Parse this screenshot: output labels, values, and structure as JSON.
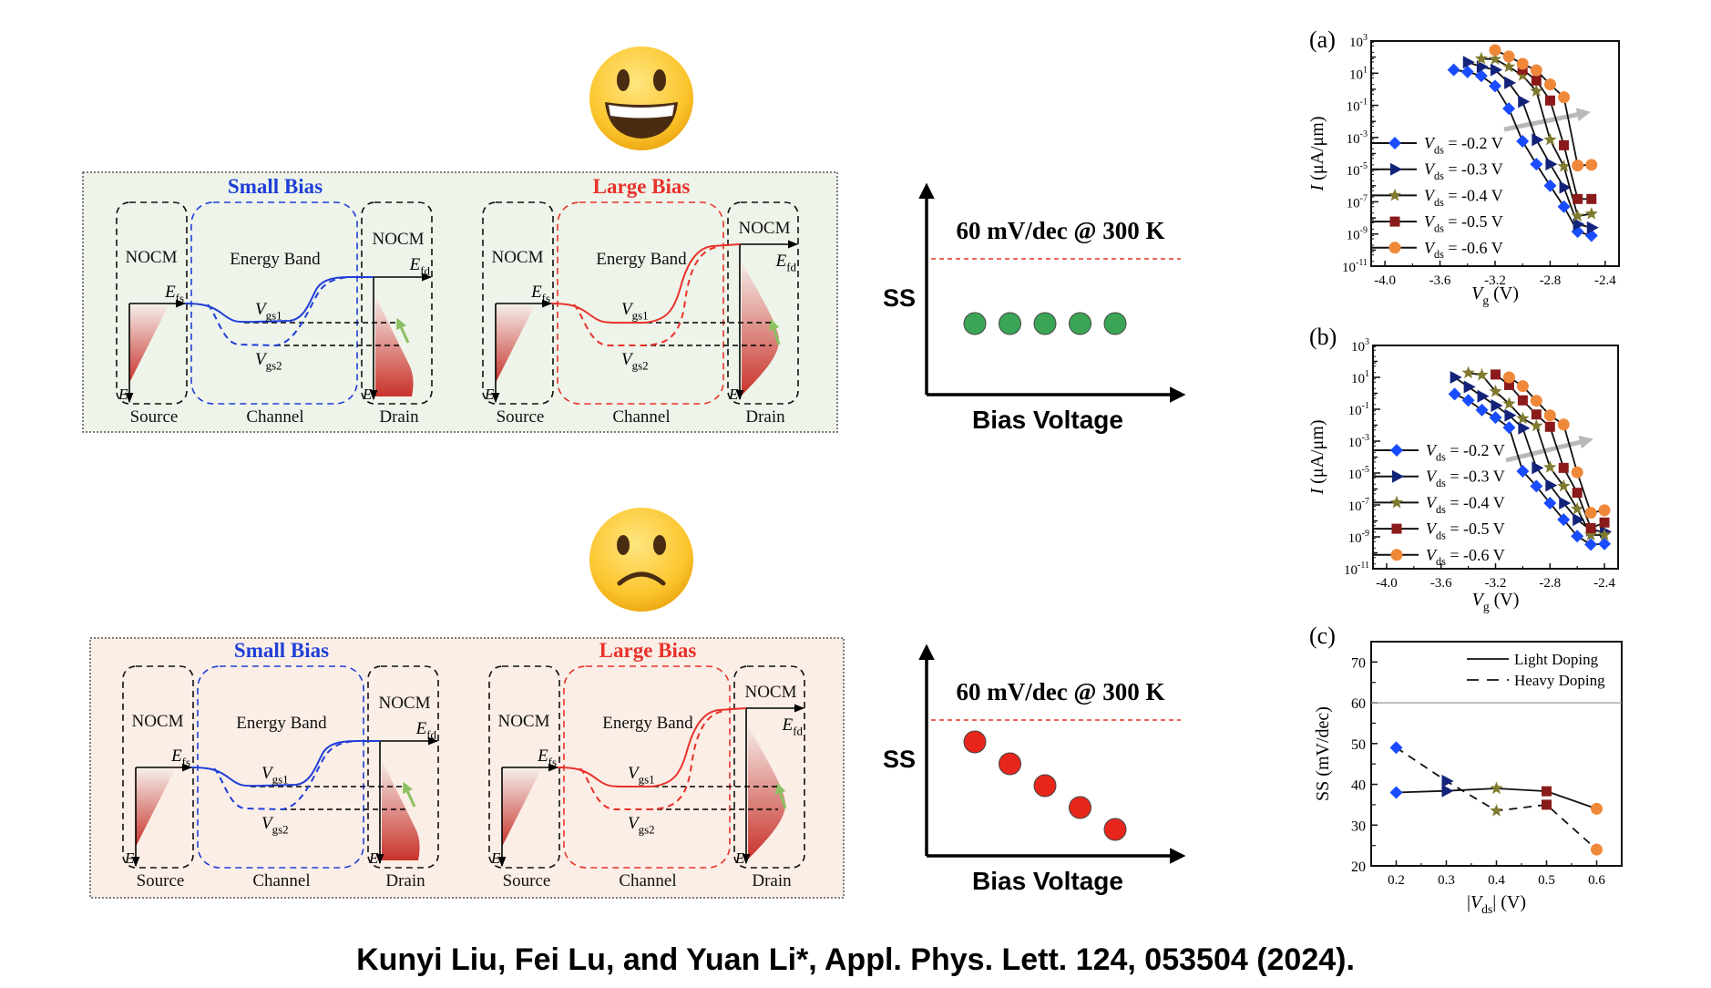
{
  "colors": {
    "good_panel_bg": "#eef4ea",
    "bad_panel_bg": "#fbeee6",
    "small_bias": "#1f3fd8",
    "large_bias": "#e8322a",
    "ss_good_dot": "#3aa655",
    "ss_bad_dot": "#e8261c",
    "threshold_line": "#e8322a",
    "drain_arrow": "#8cc063"
  },
  "emojis": [
    {
      "icon": "grinning-face-icon",
      "mood": "happy"
    },
    {
      "icon": "frowning-face-icon",
      "mood": "sad"
    }
  ],
  "band_labels": {
    "nocm": "NOCM",
    "energy_band": "Energy Band",
    "source": "Source",
    "channel": "Channel",
    "drain": "Drain",
    "e_axis": "E",
    "efs_var": "E",
    "efs_sub": "fs",
    "efd_var": "E",
    "efd_sub": "fd",
    "vgs1_var": "V",
    "vgs1_sub": "gs1",
    "vgs2_var": "V",
    "vgs2_sub": "gs2"
  },
  "panels": [
    {
      "mood": "good",
      "diagrams": [
        {
          "title": "Small Bias",
          "bias": "small"
        },
        {
          "title": "Large Bias",
          "bias": "large"
        }
      ]
    },
    {
      "mood": "bad",
      "diagrams": [
        {
          "title": "Small Bias",
          "bias": "small"
        },
        {
          "title": "Large Bias",
          "bias": "large"
        }
      ]
    }
  ],
  "ss_sketches": [
    {
      "threshold_label": "60 mV/dec @ 300 K",
      "y_label": "SS",
      "x_label": "Bias Voltage",
      "points": 5,
      "trend": "flat"
    },
    {
      "threshold_label": "60 mV/dec @ 300 K",
      "y_label": "SS",
      "x_label": "Bias Voltage",
      "points": 5,
      "trend": "decreasing"
    }
  ],
  "citation": "Kunyi Liu, Fei Lu, and Yuan Li*, Appl. Phys. Lett. 124, 053504 (2024).",
  "chart_data": [
    {
      "panel_label": "(a)",
      "type": "line",
      "y_scale": "log",
      "xlim": [
        -4.1,
        -2.3
      ],
      "ylim_exponent": [
        -11,
        3
      ],
      "xticks": [
        -4.0,
        -3.6,
        -3.2,
        -2.8,
        -2.4
      ],
      "xtick_labels": [
        "-4.0",
        "-3.6",
        "-3.2",
        "-2.8",
        "-2.4"
      ],
      "ytick_exponents": [
        -11,
        -9,
        -7,
        -5,
        -3,
        -1,
        1,
        3
      ],
      "xlabel": {
        "var": "V",
        "sub": "g",
        "text": " (V)"
      },
      "ylabel": {
        "var": "I",
        "text": " (μA/μm)"
      },
      "legend_position": "left",
      "annotation": "gray arrow indicating increasing |Vds|",
      "series": [
        {
          "label": {
            "var": "V",
            "sub": "ds",
            "text": " = -0.2 V"
          },
          "marker": "diamond",
          "color": "#1a4cff",
          "x": [
            -3.5,
            -3.4,
            -3.3,
            -3.2,
            -3.1,
            -3.0,
            -2.9,
            -2.8,
            -2.7,
            -2.6,
            -2.5
          ],
          "y": [
            16.0,
            12.0,
            6.8,
            1.6,
            0.063,
            0.00058,
            2.2e-05,
            1e-06,
            5e-08,
            1.4e-09,
            7.9e-10
          ]
        },
        {
          "label": {
            "var": "V",
            "sub": "ds",
            "text": " = -0.3 V"
          },
          "marker": "triangle-right",
          "color": "#14237a",
          "x": [
            -3.4,
            -3.3,
            -3.2,
            -3.1,
            -3.0,
            -2.9,
            -2.8,
            -2.7,
            -2.6,
            -2.5
          ],
          "y": [
            48.0,
            25.0,
            16.0,
            2.5,
            0.17,
            0.00072,
            2.2e-05,
            7.9e-07,
            4e-09,
            2.5e-09
          ]
        },
        {
          "label": {
            "var": "V",
            "sub": "ds",
            "text": " = -0.4 V"
          },
          "marker": "star",
          "color": "#7f7a2e",
          "x": [
            -3.3,
            -3.2,
            -3.1,
            -3.0,
            -2.9,
            -2.8,
            -2.7,
            -2.6,
            -2.5
          ],
          "y": [
            79.0,
            74.0,
            25.0,
            7.2,
            0.76,
            0.00072,
            1.6e-05,
            1.3e-08,
            1.8e-08
          ]
        },
        {
          "label": {
            "var": "V",
            "sub": "ds",
            "text": " = -0.5 V"
          },
          "marker": "square",
          "color": "#8b1a1a",
          "x": [
            -3.0,
            -2.9,
            -2.8,
            -2.7,
            -2.6,
            -2.5
          ],
          "y": [
            17.0,
            3.5,
            0.2,
            0.00033,
            1.5e-07,
            1.5e-07
          ]
        },
        {
          "label": {
            "var": "V",
            "sub": "ds",
            "text": " = -0.6 V"
          },
          "marker": "circle",
          "color": "#f0883a",
          "x": [
            -3.2,
            -3.1,
            -3.0,
            -2.9,
            -2.8,
            -2.7,
            -2.6,
            -2.5
          ],
          "y": [
            270.0,
            110.0,
            38.0,
            15.0,
            2,
            0.32,
            1.8e-05,
            2e-05
          ]
        }
      ]
    },
    {
      "panel_label": "(b)",
      "type": "line",
      "y_scale": "log",
      "xlim": [
        -4.1,
        -2.3
      ],
      "ylim_exponent": [
        -11,
        3
      ],
      "xticks": [
        -4.0,
        -3.6,
        -3.2,
        -2.8,
        -2.4
      ],
      "xtick_labels": [
        "-4.0",
        "-3.6",
        "-3.2",
        "-2.8",
        "-2.4"
      ],
      "ytick_exponents": [
        -11,
        -9,
        -7,
        -5,
        -3,
        -1,
        1,
        3
      ],
      "xlabel": {
        "var": "V",
        "sub": "g",
        "text": " (V)"
      },
      "ylabel": {
        "var": "I",
        "text": " (μA/μm)"
      },
      "legend_position": "left",
      "annotation": "gray arrow indicating increasing |Vds|",
      "series": [
        {
          "label": {
            "var": "V",
            "sub": "ds",
            "text": " = -0.2 V"
          },
          "marker": "diamond",
          "color": "#1a4cff",
          "x": [
            -3.5,
            -3.4,
            -3.3,
            -3.2,
            -3.1,
            -3.0,
            -2.9,
            -2.8,
            -2.7,
            -2.6,
            -2.5,
            -2.4
          ],
          "y": [
            0.89,
            0.36,
            0.089,
            0.03,
            0.0071,
            1.3e-05,
            1.5e-06,
            1.3e-07,
            1.2e-08,
            1.1e-09,
            3.3e-10,
            3.6e-10
          ]
        },
        {
          "label": {
            "var": "V",
            "sub": "ds",
            "text": " = -0.3 V"
          },
          "marker": "triangle-right",
          "color": "#14237a",
          "x": [
            -3.5,
            -3.4,
            -3.3,
            -3.2,
            -3.1,
            -3.0,
            -2.9,
            -2.8,
            -2.7,
            -2.6,
            -2.5,
            -2.4
          ],
          "y": [
            10.0,
            2.5,
            0.65,
            0.17,
            0.041,
            0.0065,
            2.1e-05,
            1.7e-06,
            1.3e-07,
            1.2e-08,
            2.6e-09,
            2.1e-09
          ]
        },
        {
          "label": {
            "var": "V",
            "sub": "ds",
            "text": " = -0.4 V"
          },
          "marker": "star",
          "color": "#7f7a2e",
          "x": [
            -3.4,
            -3.3,
            -3.2,
            -3.1,
            -3.0,
            -2.9,
            -2.8,
            -2.7,
            -2.6,
            -2.5,
            -2.4
          ],
          "y": [
            19.0,
            14.0,
            1.3,
            0.22,
            0.026,
            0.0091,
            2.3e-05,
            1.5e-06,
            5.6e-08,
            1.3e-09,
            1.3e-09
          ]
        },
        {
          "label": {
            "var": "V",
            "sub": "ds",
            "text": " = -0.5 V"
          },
          "marker": "square",
          "color": "#8b1a1a",
          "x": [
            -3.2,
            -3.1,
            -3.0,
            -2.9,
            -2.8,
            -2.7,
            -2.6,
            -2.5,
            -2.4
          ],
          "y": [
            15.0,
            3.3,
            0.36,
            0.047,
            0.0079,
            2.1e-05,
            5.8e-07,
            3.5e-09,
            7.9e-09
          ]
        },
        {
          "label": {
            "var": "V",
            "sub": "ds",
            "text": " = -0.6 V"
          },
          "marker": "circle",
          "color": "#f0883a",
          "x": [
            -3.1,
            -3.0,
            -2.9,
            -2.8,
            -2.7,
            -2.6,
            -2.5,
            -2.4
          ],
          "y": [
            10.0,
            2.8,
            0.34,
            0.041,
            0.011,
            1.1e-05,
            3.2e-08,
            4.6e-08
          ]
        }
      ]
    },
    {
      "panel_label": "(c)",
      "type": "line",
      "y_scale": "linear",
      "xlim": [
        0.15,
        0.65
      ],
      "ylim": [
        20,
        75
      ],
      "xticks": [
        0.2,
        0.3,
        0.4,
        0.5,
        0.6
      ],
      "xtick_labels": [
        "0.2",
        "0.3",
        "0.4",
        "0.5",
        "0.6"
      ],
      "yticks": [
        20,
        30,
        40,
        50,
        60,
        70
      ],
      "ytick_labels": [
        "20",
        "30",
        "40",
        "50",
        "60",
        "70"
      ],
      "xlabel": {
        "pre": "|",
        "var": "V",
        "sub": "ds",
        "text": "| (V)"
      },
      "ylabel": {
        "text": "SS (mV/dec)"
      },
      "reference_line": 60,
      "legend_position": "top-right",
      "point_markers": [
        {
          "marker": "diamond",
          "color": "#1a4cff"
        },
        {
          "marker": "triangle-right",
          "color": "#14237a"
        },
        {
          "marker": "star",
          "color": "#7f7a2e"
        },
        {
          "marker": "square",
          "color": "#8b1a1a"
        },
        {
          "marker": "circle",
          "color": "#f0883a"
        }
      ],
      "x": [
        0.2,
        0.3,
        0.4,
        0.5,
        0.6
      ],
      "series": [
        {
          "name": "Light Doping",
          "style": "solid",
          "y": [
            38,
            38.4,
            39,
            38.3,
            34
          ]
        },
        {
          "name": "Heavy Doping",
          "style": "dashed",
          "y": [
            49,
            40.8,
            33.5,
            35,
            24
          ]
        }
      ]
    }
  ]
}
